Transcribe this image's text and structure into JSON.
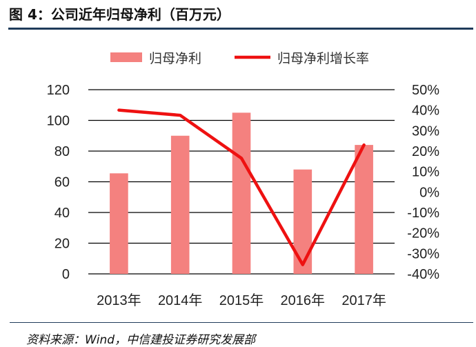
{
  "figure": {
    "title": "图 4：公司近年归母净利（百万元）",
    "source": "资料来源：Wind，中信建投证券研究发展部"
  },
  "colors": {
    "bar": "#f4817f",
    "line": "#ee1111",
    "grid": "#000000",
    "rule": "#1f3b5a"
  },
  "chart_data": {
    "type": "bar",
    "categories": [
      "2013年",
      "2014年",
      "2015年",
      "2016年",
      "2017年"
    ],
    "series": [
      {
        "name": "归母净利",
        "type": "bar",
        "axis": "left",
        "values": [
          65.5,
          90,
          105,
          68,
          84
        ]
      },
      {
        "name": "归母净利增长率",
        "type": "line",
        "axis": "right",
        "values": [
          40,
          37.5,
          16.5,
          -35.5,
          23
        ]
      }
    ],
    "y_left": {
      "lim": [
        0,
        120
      ],
      "ticks": [
        0,
        20,
        40,
        60,
        80,
        100,
        120
      ],
      "labels": [
        "0",
        "20",
        "40",
        "60",
        "80",
        "100",
        "120"
      ]
    },
    "y_right": {
      "lim": [
        -40,
        50
      ],
      "ticks": [
        -40,
        -30,
        -20,
        -10,
        0,
        10,
        20,
        30,
        40,
        50
      ],
      "labels": [
        "-40%",
        "-30%",
        "-20%",
        "-10%",
        "0%",
        "10%",
        "20%",
        "30%",
        "40%",
        "50%"
      ]
    },
    "grid": true,
    "legend": "top"
  }
}
